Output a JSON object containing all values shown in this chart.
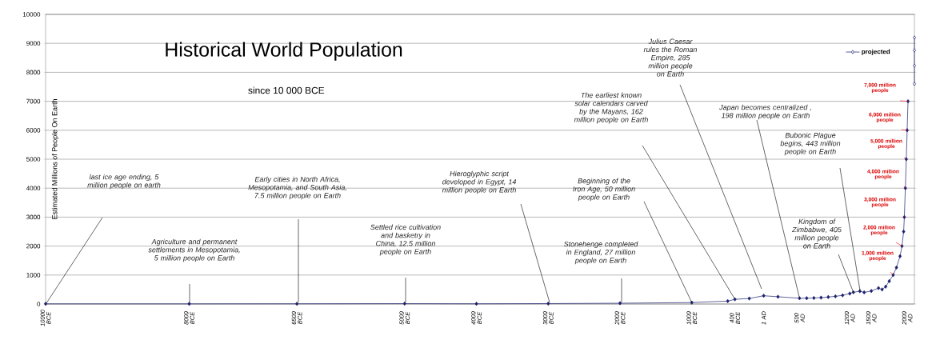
{
  "chart_data": {
    "type": "line",
    "title": "Historical World Population",
    "subtitle": "since 10 000 BCE",
    "ylabel": "Estimated Millions of People On Earth",
    "xlim": [
      -10000,
      2100
    ],
    "ylim": [
      0,
      10000
    ],
    "xticks": [
      {
        "value": -10000,
        "label": "10000 BCE"
      },
      {
        "value": -8000,
        "label": "8000 BCE"
      },
      {
        "value": -6500,
        "label": "6500 BCE"
      },
      {
        "value": -5000,
        "label": "5000 BCE"
      },
      {
        "value": -4000,
        "label": "4000 BCE"
      },
      {
        "value": -3000,
        "label": "3000 BCE"
      },
      {
        "value": -2000,
        "label": "2000 BCE"
      },
      {
        "value": -1000,
        "label": "1000 BCE"
      },
      {
        "value": -400,
        "label": "400 BCE"
      },
      {
        "value": 1,
        "label": "1 AD"
      },
      {
        "value": 500,
        "label": "500 AD"
      },
      {
        "value": 1200,
        "label": "1200 AD"
      },
      {
        "value": 1500,
        "label": "1500 AD"
      },
      {
        "value": 2000,
        "label": "2000 AD"
      }
    ],
    "yticks": [
      0,
      1000,
      2000,
      3000,
      4000,
      5000,
      6000,
      7000,
      8000,
      9000,
      10000
    ],
    "grid": "y",
    "marker": "diamond",
    "line_style": "solid",
    "legend": "top right",
    "series": [
      {
        "color": "#1b1f6e",
        "x": [
          -10000,
          -8000,
          -6500,
          -5000,
          -4000,
          -3000,
          -2000,
          -1000,
          -500,
          -400,
          -200,
          1,
          200,
          500,
          600,
          700,
          800,
          900,
          1000,
          1100,
          1200,
          1250,
          1340,
          1400,
          1500,
          1600,
          1650,
          1700,
          1750,
          1804,
          1850,
          1900,
          1927,
          1950,
          1960,
          1974,
          1987,
          1999,
          2011
        ],
        "values": [
          5,
          5,
          7.5,
          12.5,
          7,
          14,
          27,
          50,
          100,
          162,
          190,
          285,
          250,
          198,
          200,
          207,
          220,
          240,
          265,
          300,
          360,
          405,
          443,
          400,
          450,
          550,
          500,
          600,
          790,
          1000,
          1260,
          1650,
          2000,
          2500,
          3000,
          4000,
          5000,
          6000,
          7000
        ]
      },
      {
        "name": "projected",
        "color": "#1b1f6e",
        "x": [
          2100,
          2100,
          2100,
          2100
        ],
        "values": [
          7600,
          8230,
          8760,
          9200
        ]
      }
    ],
    "annotations": [
      "last ice age ending, 5 million people on earth",
      "Agriculture and permanent settlements in Mesopotamia, 5 million people on Earth",
      "Early cities in North Africa, Mesopotamia, and South Asia, 7.5 million people on Earth",
      "Settled rice cultivation and basketry in China, 12.5 million people on Earth",
      "Hieroglyphic script developed in Egypt, 14 million people on Earth",
      "Stonehenge completed in England, 27 million people on Earth",
      {
        "text": "Beginning of the Iron Age, 50 million people on Earth",
        "x": -1000,
        "y": 50
      },
      "The earliest known solar calendars carved by the Mayans, 162 million people on Earth",
      "Julius Caesar rules the Roman Empire, 285 million people on Earth",
      {
        "text": "Japan becomes centralized , 198 million people on Earth",
        "x": 500,
        "y": 198
      },
      {
        "text": "Kingdom of Zimbabwe, 405 million people on Earth",
        "x": 1250,
        "y": 405
      },
      "Bubonic Plague begins, 443 million people on Earth",
      {
        "text": "1,000 million people",
        "x": 1804,
        "y": 1000
      },
      {
        "text": "2,000 million people",
        "x": 1927,
        "y": 2000
      },
      {
        "text": "3,000 million people",
        "x": 1960,
        "y": 3000
      },
      {
        "text": "4,000 million people",
        "x": 1974,
        "y": 4000
      },
      {
        "text": "5,000 million people",
        "x": 1987,
        "y": 5000
      },
      {
        "text": "6,000 million people",
        "x": 1999,
        "y": 6000
      },
      {
        "text": "7,000 million people",
        "x": 2011,
        "y": 7000
      }
    ]
  }
}
